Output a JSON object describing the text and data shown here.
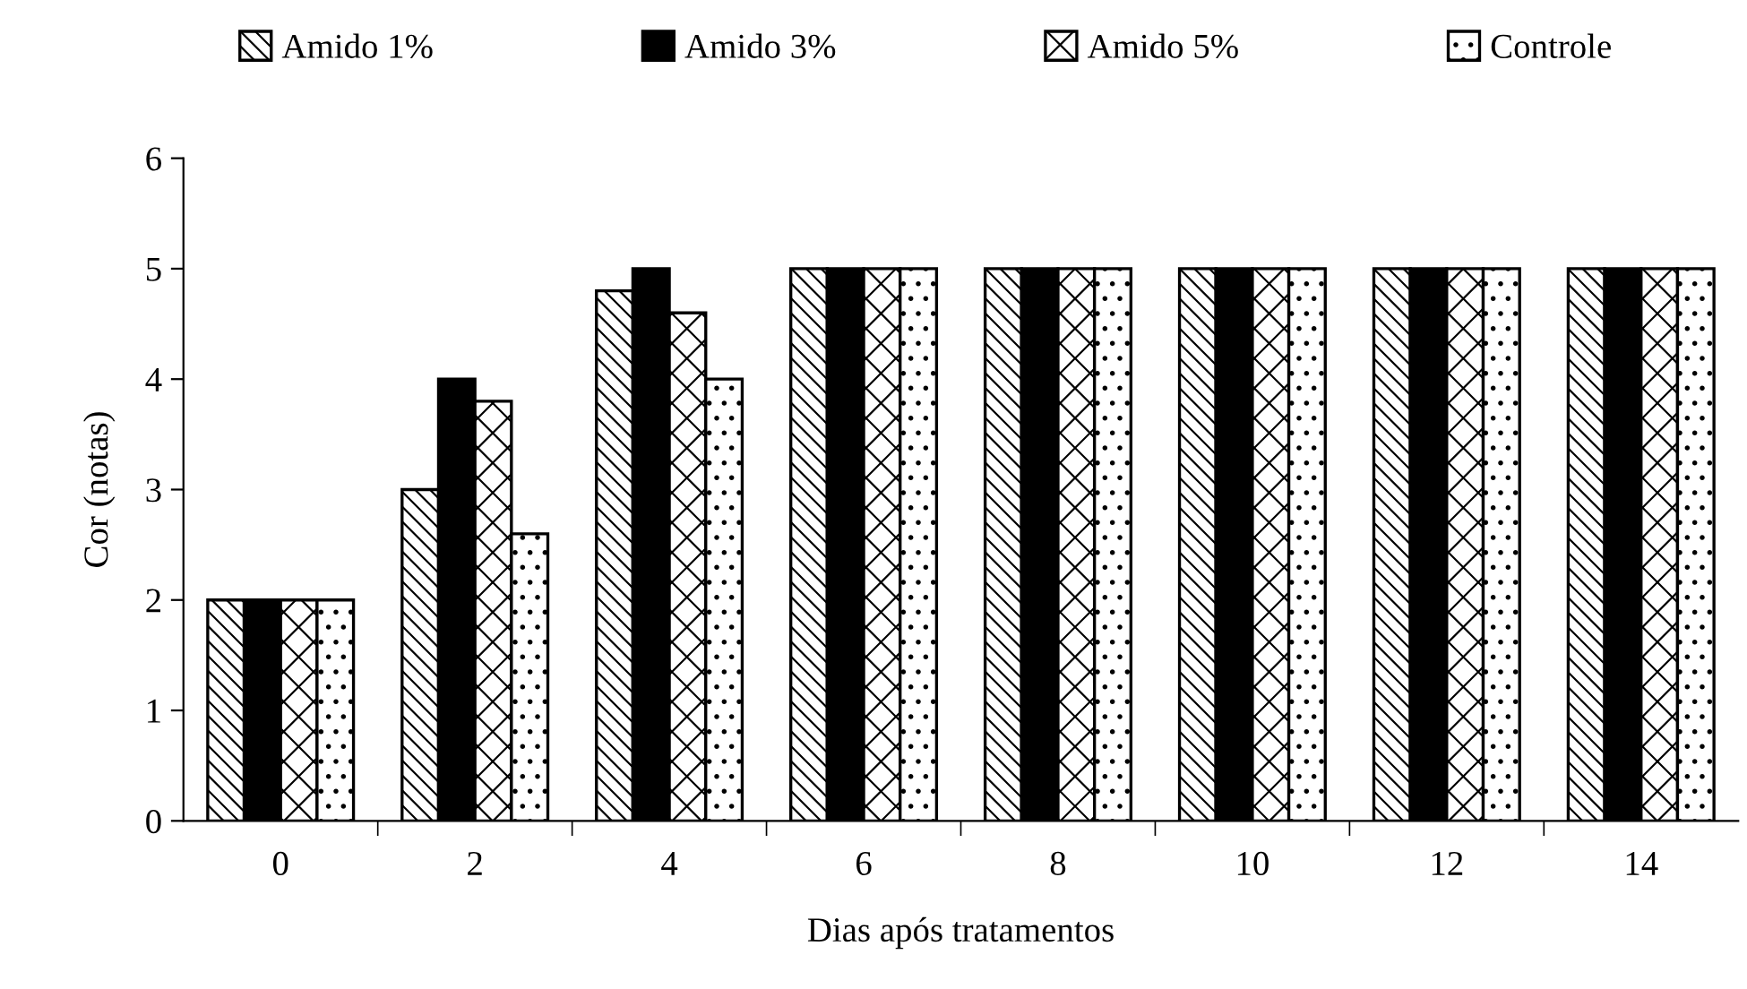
{
  "chart_data": {
    "type": "bar",
    "xlabel": "Dias após tratamentos",
    "ylabel": "Cor (notas)",
    "categories": [
      "0",
      "2",
      "4",
      "6",
      "8",
      "10",
      "12",
      "14"
    ],
    "series": [
      {
        "name": "Amido 1%",
        "color": "#000000",
        "values": [
          2,
          3.0,
          4.8,
          5,
          5,
          5,
          5,
          5
        ]
      },
      {
        "name": "Amido 3%",
        "color": "#000000",
        "values": [
          2,
          4.0,
          5.0,
          5,
          5,
          5,
          5,
          5
        ]
      },
      {
        "name": "Amido 5%",
        "color": "#000000",
        "values": [
          2,
          3.8,
          4.6,
          5,
          5,
          5,
          5,
          5
        ]
      },
      {
        "name": "Controle",
        "color": "#000000",
        "values": [
          2,
          2.6,
          4.0,
          5,
          5,
          5,
          5,
          5
        ]
      }
    ],
    "ylim": [
      0,
      6
    ],
    "yticks": [
      0,
      1,
      2,
      3,
      4,
      5,
      6
    ],
    "grid": false,
    "legend": "top"
  }
}
